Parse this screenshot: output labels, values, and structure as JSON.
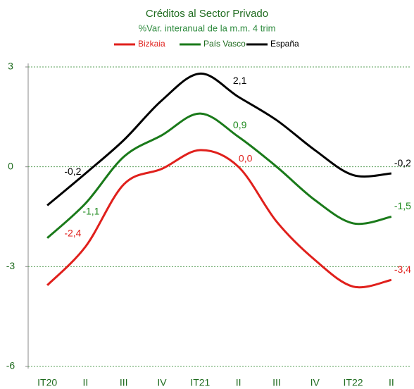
{
  "chart_data": {
    "type": "line",
    "title": "Créditos al Sector Privado",
    "subtitle": "%Var. interanual de la m.m. 4 trim",
    "categories": [
      "IT20",
      "II",
      "III",
      "IV",
      "IT21",
      "II",
      "III",
      "IV",
      "IT22",
      "II"
    ],
    "series": [
      {
        "name": "Bizkaia",
        "color": "#e0201c",
        "values": [
          -3.56,
          -2.4,
          -0.53,
          -0.06,
          0.5,
          0.0,
          -1.65,
          -2.8,
          -3.6,
          -3.4
        ],
        "value_labels": [
          null,
          "-2,4",
          null,
          null,
          null,
          "0,0",
          null,
          null,
          null,
          "-3,4"
        ]
      },
      {
        "name": "País Vasco",
        "color": "#1a7a1a",
        "values": [
          -2.14,
          -1.1,
          0.3,
          0.95,
          1.6,
          0.9,
          0.0,
          -1.0,
          -1.7,
          -1.5
        ],
        "value_labels": [
          null,
          "-1,1",
          null,
          null,
          null,
          "0,9",
          null,
          null,
          null,
          "-1,5"
        ]
      },
      {
        "name": "España",
        "color": "#000000",
        "values": [
          -1.16,
          -0.2,
          0.8,
          2.0,
          2.8,
          2.1,
          1.4,
          0.5,
          -0.25,
          -0.2
        ],
        "value_labels": [
          null,
          "-0,2",
          null,
          null,
          null,
          "2,1",
          null,
          null,
          null,
          "-0,2"
        ]
      }
    ],
    "ylim": [
      -6,
      3
    ],
    "yticks": [
      -6,
      -3,
      0,
      3
    ],
    "grid": true
  }
}
